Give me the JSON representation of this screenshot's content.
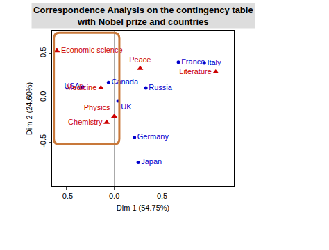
{
  "chart_data": {
    "type": "scatter",
    "title": [
      "Correspondence Analysis on the contingency table",
      "with Nobel prize and countries"
    ],
    "x_label": "Dim 1 (54.75%)",
    "y_label": "Dim 2 (24.60%)",
    "xlim": [
      -0.65,
      1.25
    ],
    "ylim": [
      -1.0,
      0.75
    ],
    "xticks": [
      -0.5,
      {
        "value": 0,
        "label": "0.0"
      },
      0.5
    ],
    "yticks": [
      -0.5,
      {
        "value": 0,
        "label": "0.0"
      },
      0.5
    ],
    "grid": false,
    "series": [
      {
        "color": "#0000cc",
        "marker": "circle",
        "labels": [
          "France",
          "Italy",
          "Canada",
          "USA",
          "Russia",
          "UK",
          "Germany",
          "Japan"
        ],
        "x": [
          0.67,
          0.94,
          -0.06,
          -0.33,
          0.33,
          0.04,
          0.21,
          0.25
        ],
        "y": [
          0.4,
          0.39,
          0.17,
          0.12,
          0.11,
          -0.04,
          -0.45,
          -0.73
        ]
      },
      {
        "color": "#cc0000",
        "marker": "triangle-up",
        "labels": [
          "Economic science",
          "Peace",
          "Literature",
          "Medicine",
          "Physics",
          "Chemistry"
        ],
        "x": [
          -0.6,
          0.27,
          1.06,
          -0.14,
          0.0,
          -0.08
        ],
        "y": [
          0.53,
          0.33,
          0.29,
          0.11,
          -0.21,
          -0.28
        ]
      }
    ]
  }
}
